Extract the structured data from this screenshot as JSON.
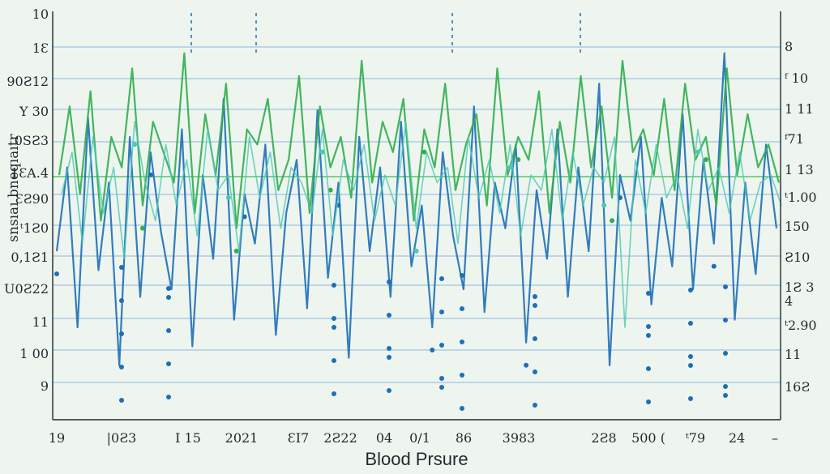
{
  "chart_data": {
    "type": "line",
    "title": "",
    "xlabel": "Blood Prsure",
    "ylabel": "snsıaı bneqıaıtr",
    "grid": true,
    "left_tick_labels": [
      "10",
      "1Ɛ",
      "90Ƨ12",
      "Y 30",
      "0SƧ3",
      "1ƐA.4",
      "ƐƧ90",
      "ᵗ1Ƨ0",
      "0,1Ƨ1",
      "U0Ƨ22",
      "11",
      "1 00",
      "9"
    ],
    "right_tick_labels": [
      "8",
      "ᶠ 10",
      "1 11",
      "ᶠ71",
      "1 13",
      "ᵗ1.00",
      "150",
      "Ƨ10",
      "1Ƨ 3",
      "4",
      "ᵗ2.90",
      "11",
      "16Ƨ"
    ],
    "x_tick_labels": [
      "19",
      "|0Ƨ3",
      "I 15",
      "2021",
      "ƐI7",
      "2Ƨ22",
      "04",
      "0/1",
      "86",
      "3983",
      "2Ƨ8",
      "500 (",
      "ᵗ79",
      "24",
      "–"
    ],
    "series": [
      {
        "color": "#1d6fb8",
        "values": [
          40,
          62,
          20,
          75,
          35,
          58,
          10,
          70,
          28,
          66,
          45,
          30,
          72,
          15,
          60,
          38,
          80,
          22,
          55,
          42,
          68,
          18,
          50,
          64,
          25,
          77,
          33,
          58,
          12,
          70,
          40,
          62,
          28,
          74,
          36,
          52,
          20,
          66,
          44,
          30,
          78,
          24,
          58,
          46,
          68,
          16,
          56,
          38,
          72,
          28,
          62,
          40,
          84,
          10,
          60,
          48,
          70,
          26,
          54,
          36,
          76,
          30,
          64,
          42,
          92,
          22,
          58,
          34,
          68,
          46
        ]
      },
      {
        "color": "#2fae4e",
        "values": [
          60,
          78,
          55,
          82,
          48,
          70,
          62,
          88,
          52,
          74,
          66,
          58,
          92,
          50,
          76,
          60,
          84,
          46,
          72,
          68,
          80,
          56,
          64,
          86,
          50,
          78,
          62,
          70,
          54,
          90,
          58,
          74,
          66,
          80,
          48,
          72,
          62,
          84,
          56,
          68,
          76,
          52,
          88,
          60,
          70,
          64,
          82,
          50,
          74,
          58,
          86,
          62,
          78,
          54,
          90,
          66,
          72,
          60,
          80,
          56,
          84,
          64,
          70,
          52,
          88,
          60,
          76,
          62,
          68,
          58
        ]
      },
      {
        "color": "#4cc8b4",
        "values": [
          55,
          66,
          42,
          70,
          50,
          62,
          38,
          74,
          58,
          48,
          68,
          52,
          64,
          44,
          72,
          56,
          60,
          40,
          70,
          54,
          66,
          46,
          62,
          58,
          50,
          72,
          44,
          64,
          56,
          68,
          48,
          60,
          52,
          74,
          46,
          66,
          58,
          62,
          42,
          70,
          54,
          64,
          50,
          68,
          44,
          60,
          56,
          72,
          48,
          66,
          52,
          62,
          58,
          70,
          20,
          64,
          50,
          68,
          54,
          60,
          46,
          72,
          56,
          62,
          50,
          66,
          48,
          58,
          60,
          52
        ]
      }
    ]
  }
}
